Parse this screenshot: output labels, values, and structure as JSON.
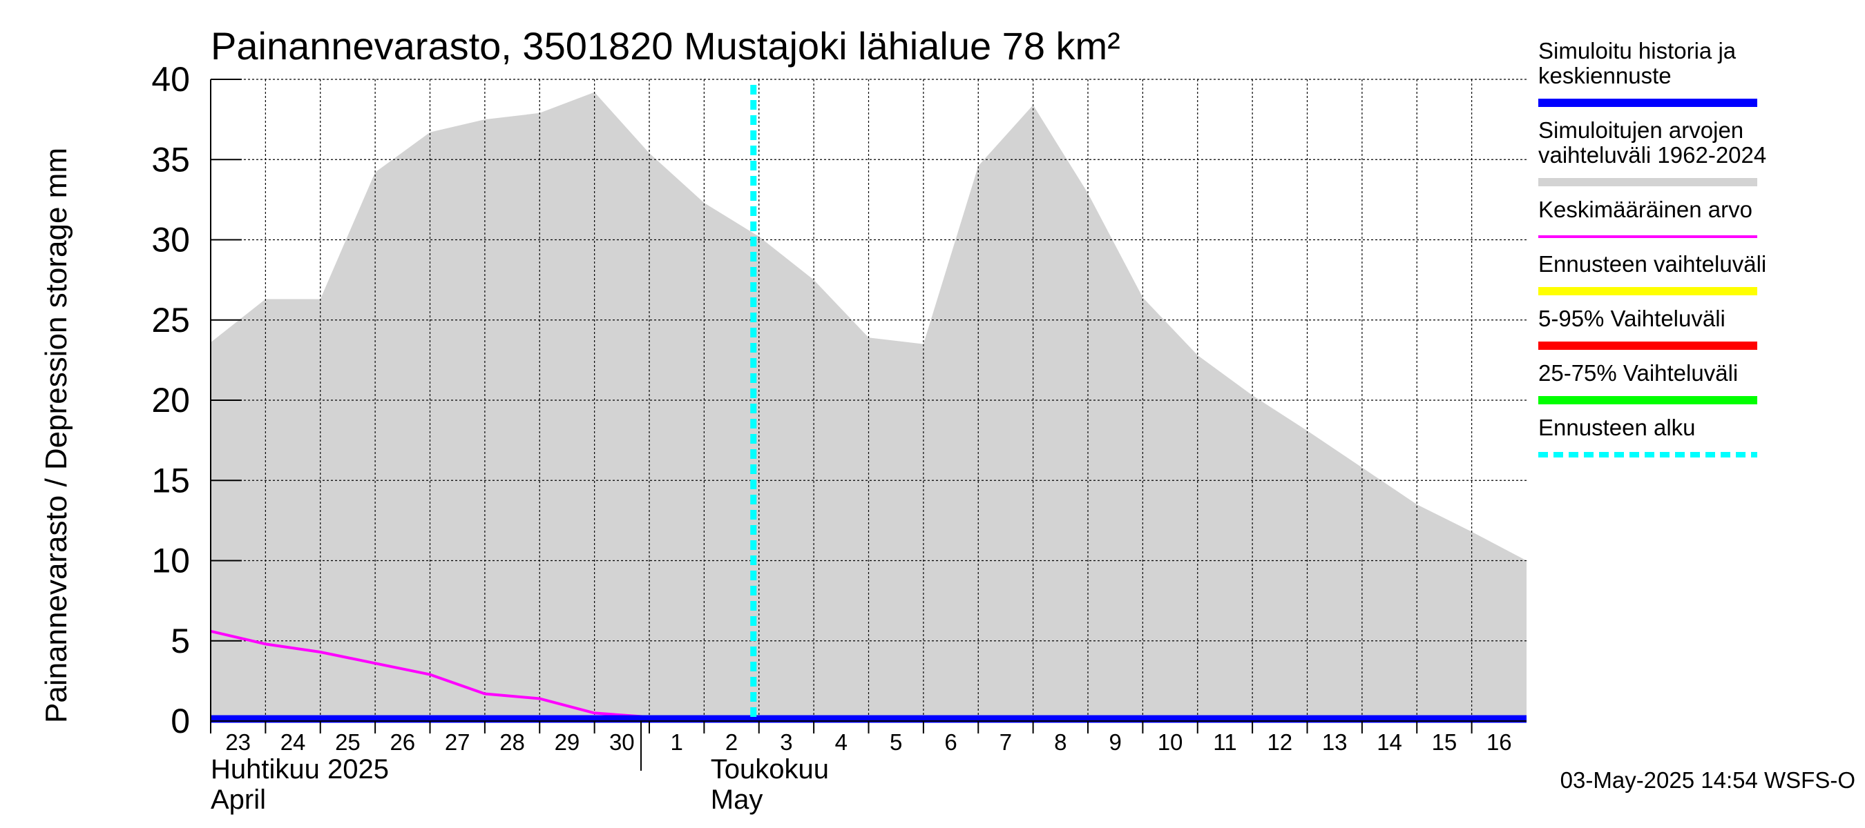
{
  "chart_data": {
    "type": "area",
    "title": "Painannevarasto, 3501820 Mustajoki lähialue 78 km²",
    "ylabel": "Painannevarasto / Depression storage    mm",
    "ylim": [
      0,
      40
    ],
    "yticks": [
      0,
      5,
      10,
      15,
      20,
      25,
      30,
      35,
      40
    ],
    "grid": true,
    "x_day_labels": [
      "23",
      "24",
      "25",
      "26",
      "27",
      "28",
      "29",
      "30",
      "1",
      "2",
      "3",
      "4",
      "5",
      "6",
      "7",
      "8",
      "9",
      "10",
      "11",
      "12",
      "13",
      "14",
      "15",
      "16"
    ],
    "x_range": [
      "2025-04-23",
      "2025-05-17"
    ],
    "month_labels": [
      {
        "fi": "Huhtikuu  2025",
        "en": "April",
        "date": "2025-04-23"
      },
      {
        "fi": "Toukokuu",
        "en": "May",
        "date": "2025-05-03"
      }
    ],
    "forecast_start": "2025-05-03",
    "series": [
      {
        "name": "Simuloitujen arvojen vaihteluväli 1962-2024",
        "kind": "range",
        "color": "#d3d3d3",
        "x": [
          "2025-04-23",
          "2025-04-24",
          "2025-04-25",
          "2025-04-26",
          "2025-04-27",
          "2025-04-28",
          "2025-04-29",
          "2025-04-30",
          "2025-05-01",
          "2025-05-02",
          "2025-05-03",
          "2025-05-04",
          "2025-05-05",
          "2025-05-06",
          "2025-05-07",
          "2025-05-08",
          "2025-05-09",
          "2025-05-10",
          "2025-05-11",
          "2025-05-12",
          "2025-05-13",
          "2025-05-14",
          "2025-05-15",
          "2025-05-16",
          "2025-05-17"
        ],
        "upper": [
          23.6,
          26.3,
          26.3,
          34.2,
          36.7,
          37.5,
          37.9,
          39.2,
          35.4,
          32.3,
          30.2,
          27.5,
          23.9,
          23.5,
          34.6,
          38.4,
          32.9,
          26.4,
          22.8,
          20.3,
          18.1,
          15.8,
          13.5,
          11.8,
          10.0
        ],
        "lower": [
          0,
          0,
          0,
          0,
          0,
          0,
          0,
          0,
          0,
          0,
          0,
          0,
          0,
          0,
          0,
          0,
          0,
          0,
          0,
          0,
          0,
          0,
          0,
          0,
          0
        ]
      },
      {
        "name": "Keskimääräinen arvo",
        "kind": "line",
        "color": "#ff00ff",
        "x": [
          "2025-04-23",
          "2025-04-24",
          "2025-04-25",
          "2025-04-26",
          "2025-04-27",
          "2025-04-28",
          "2025-04-29",
          "2025-04-30",
          "2025-05-01",
          "2025-05-02",
          "2025-05-03",
          "2025-05-04",
          "2025-05-05",
          "2025-05-06",
          "2025-05-07",
          "2025-05-08",
          "2025-05-09",
          "2025-05-10",
          "2025-05-11",
          "2025-05-12",
          "2025-05-13",
          "2025-05-14",
          "2025-05-15",
          "2025-05-16",
          "2025-05-17"
        ],
        "y": [
          5.6,
          4.8,
          4.3,
          3.6,
          2.9,
          1.7,
          1.4,
          0.5,
          0.25,
          0.15,
          0.05,
          0.05,
          0.05,
          0.05,
          0.05,
          0.05,
          0.05,
          0.05,
          0.05,
          0.05,
          0.05,
          0.05,
          0.05,
          0.05,
          0.05
        ]
      },
      {
        "name": "Simuloitu historia ja keskiennuste",
        "kind": "line",
        "color": "#0000ff",
        "x": [
          "2025-04-23",
          "2025-05-17"
        ],
        "y": [
          0,
          0
        ]
      }
    ],
    "legend": {
      "placement": "right",
      "items": [
        {
          "label": "Simuloitu historia ja keskiennuste",
          "color": "#0000ff",
          "style": "solid"
        },
        {
          "label": "Simuloitujen arvojen vaihteluväli 1962-2024",
          "color": "#d3d3d3",
          "style": "solid"
        },
        {
          "label": "Keskimääräinen arvo",
          "color": "#ff00ff",
          "style": "thin"
        },
        {
          "label": "Ennusteen vaihteluväli",
          "color": "#ffff00",
          "style": "solid"
        },
        {
          "label": "5-95% Vaihteluväli",
          "color": "#ff0000",
          "style": "solid"
        },
        {
          "label": "25-75% Vaihteluväli",
          "color": "#00ff00",
          "style": "solid"
        },
        {
          "label": "Ennusteen alku",
          "color": "#00ffff",
          "style": "dashed"
        }
      ]
    },
    "footer": "03-May-2025 14:54 WSFS-O"
  }
}
